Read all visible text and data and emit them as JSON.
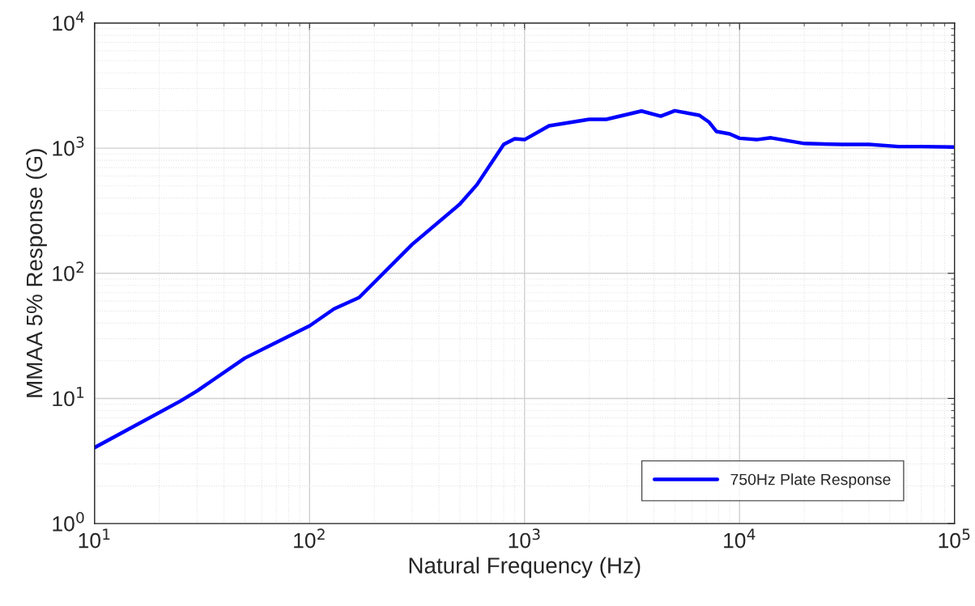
{
  "chart_data": {
    "type": "line",
    "xlabel": "Natural Frequency (Hz)",
    "ylabel": "MMAA 5% Response (G)",
    "log": "xy",
    "grid": true,
    "legend": "bottom right",
    "line_style": "solid",
    "marker": "none",
    "xlim": [
      10,
      100000
    ],
    "ylim": [
      1,
      10000
    ],
    "xticks": [
      {
        "value": 10,
        "label": "10$^{1}$"
      },
      {
        "value": 100,
        "label": "10$^{2}$"
      },
      {
        "value": 1000,
        "label": "10$^{3}$"
      },
      {
        "value": 10000,
        "label": "10$^{4}$"
      },
      {
        "value": 100000,
        "label": "10$^{5}$"
      }
    ],
    "yticks": [
      {
        "value": 1,
        "label": "10$^{0}$"
      },
      {
        "value": 10,
        "label": "10$^{1}$"
      },
      {
        "value": 100,
        "label": "10$^{2}$"
      },
      {
        "value": 1000,
        "label": "10$^{3}$"
      },
      {
        "value": 10000,
        "label": "10$^{4}$"
      }
    ],
    "x": [
      10,
      25,
      30,
      50,
      70,
      100,
      130,
      170,
      300,
      500,
      600,
      800,
      900,
      1000,
      1300,
      2000,
      2400,
      3500,
      4300,
      5000,
      6500,
      7200,
      7800,
      9000,
      10000,
      12000,
      14000,
      20000,
      30000,
      40000,
      55000,
      70000,
      100000
    ],
    "series": [
      {
        "name": "750Hz Plate Response",
        "color": "#0000ff",
        "values": [
          4.05,
          9.5,
          11.5,
          21,
          28,
          38,
          52,
          64,
          170,
          357,
          510,
          1070,
          1190,
          1170,
          1510,
          1700,
          1700,
          1980,
          1800,
          1990,
          1830,
          1620,
          1360,
          1300,
          1200,
          1170,
          1210,
          1090,
          1070,
          1070,
          1030,
          1030,
          1020
        ]
      }
    ]
  }
}
